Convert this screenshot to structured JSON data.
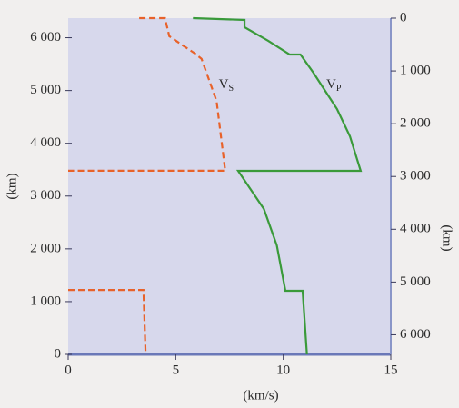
{
  "chart_data": {
    "type": "line",
    "xlabel": "(km/s)",
    "ylabel": "(km)",
    "y2label": "(km)",
    "xlim": [
      0,
      15
    ],
    "xticks": [
      0,
      5,
      10,
      15
    ],
    "ylim": [
      0,
      6371
    ],
    "yticks": [
      0,
      {
        "value": 1000,
        "label": "1 000"
      },
      {
        "value": 2000,
        "label": "2 000"
      },
      {
        "value": 3000,
        "label": "3 000"
      },
      {
        "value": 4000,
        "label": "4 000"
      },
      {
        "value": 5000,
        "label": "5 000"
      },
      {
        "value": 6000,
        "label": "6 000"
      }
    ],
    "y2lim": [
      6371,
      0
    ],
    "y2ticks": [
      0,
      {
        "value": 1000,
        "label": "1 000"
      },
      {
        "value": 2000,
        "label": "2 000"
      },
      {
        "value": 3000,
        "label": "3 000"
      },
      {
        "value": 4000,
        "label": "4 000"
      },
      {
        "value": 5000,
        "label": "5 000"
      },
      {
        "value": 6000,
        "label": "6 000"
      }
    ],
    "series": [
      {
        "color": "#e8622a",
        "dashed": true,
        "x": [
          3.3,
          4.5,
          4.7,
          5.2,
          5.9,
          6.2,
          6.9,
          7.3,
          0,
          null,
          0,
          3.5,
          3.6
        ],
        "y": [
          6371,
          6371,
          6030,
          5890,
          5700,
          5600,
          4800,
          3480,
          3480,
          null,
          1220,
          1220,
          0
        ]
      },
      {
        "color": "#3a9a3a",
        "dashed": false,
        "x": [
          5.8,
          8.2,
          8.2,
          9.3,
          10.3,
          10.8,
          11.4,
          12.5,
          13.1,
          13.6,
          7.9,
          9.1,
          9.7,
          10.1,
          10.9,
          11.1
        ],
        "y": [
          6371,
          6337,
          6199,
          5941,
          5682,
          5682,
          5338,
          4649,
          4133,
          3478,
          3478,
          2755,
          2066,
          1205,
          1205,
          0
        ]
      }
    ],
    "annotations": [
      {
        "text": "V",
        "sub": "S",
        "x": 7,
        "y": 5100
      },
      {
        "text": "V",
        "sub": "P",
        "x": 12,
        "y": 5100
      }
    ]
  }
}
